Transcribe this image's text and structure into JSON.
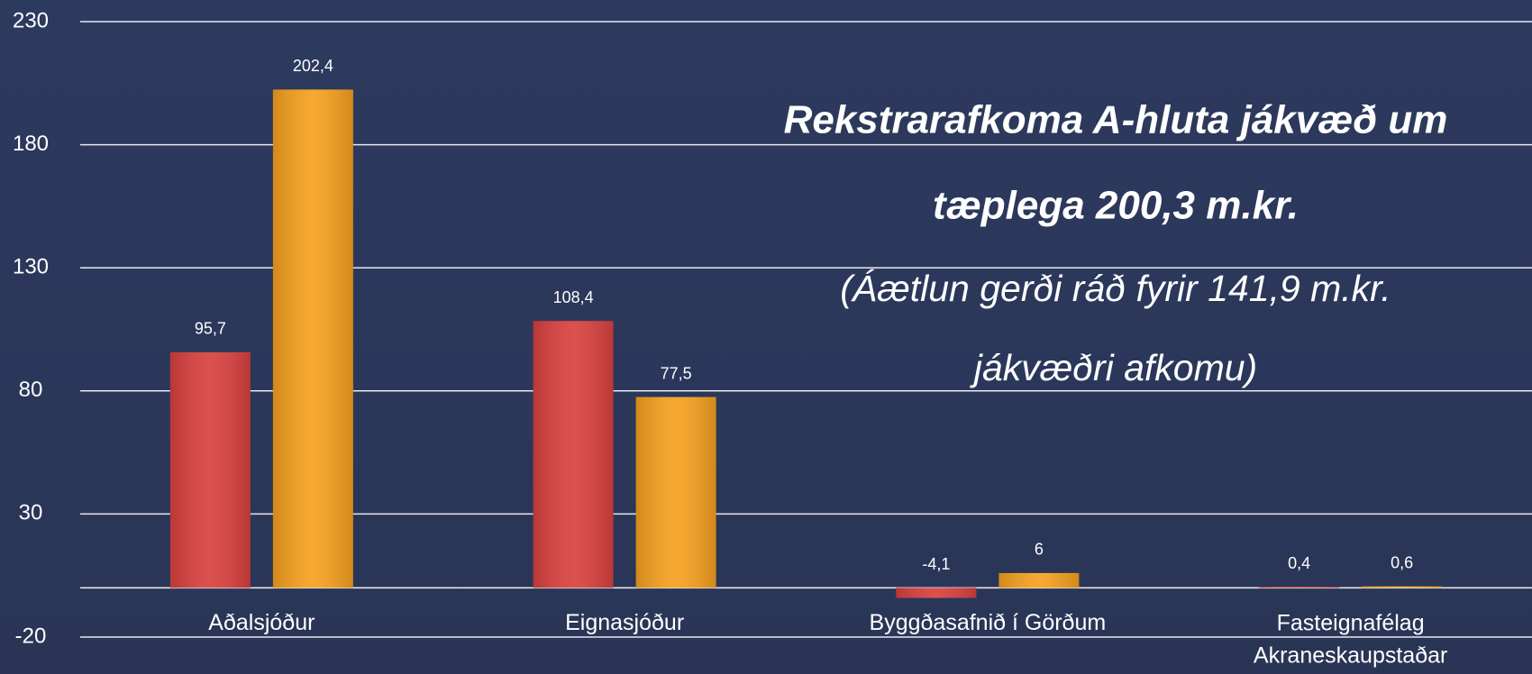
{
  "chart_data": {
    "type": "bar",
    "title_lines": [
      "Rekstrarafkoma A-hluta jákvæð um",
      "tæplega 200,3 m.kr."
    ],
    "subtitle_lines": [
      "(Áætlun gerði ráð fyrir 141,9 m.kr.",
      "jákvæðri afkomu)"
    ],
    "categories": [
      "Aðalsjóður",
      "Eignasjóður",
      "Byggðasafnið í Görðum",
      "Fasteignafélag Akraneskaupstaðar"
    ],
    "series": [
      {
        "color": "#d9413e",
        "values": [
          95.7,
          108.4,
          -4.1,
          0.4
        ],
        "value_labels": [
          "95,7",
          "108,4",
          "-4,1",
          "0,4"
        ]
      },
      {
        "color": "#f6a11f",
        "values": [
          202.4,
          77.5,
          6,
          0.6
        ],
        "value_labels": [
          "202,4",
          "77,5",
          "6",
          "0,6"
        ]
      }
    ],
    "ylim": [
      -20,
      230
    ],
    "yticks": [
      -20,
      30,
      80,
      130,
      180,
      230
    ],
    "grid": true
  }
}
